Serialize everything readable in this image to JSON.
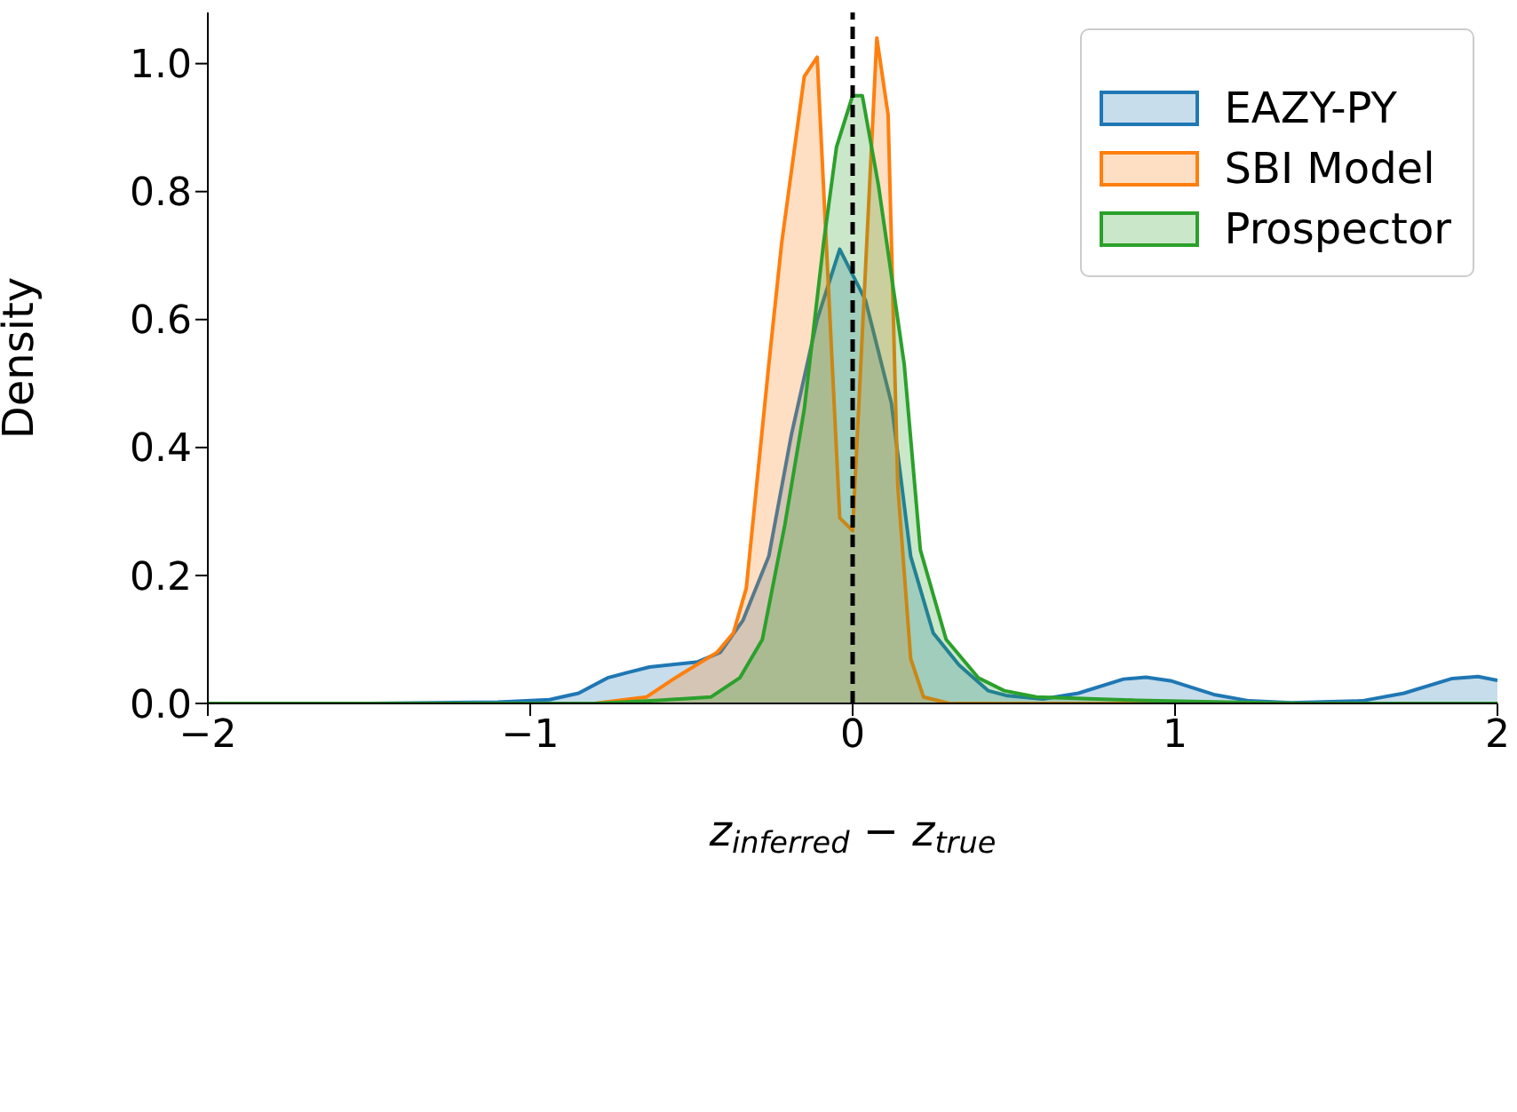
{
  "chart_data": {
    "type": "area",
    "xlabel": "z$_{inferred}$ − z$_{true}$",
    "ylabel": "Density",
    "xlim": [
      -2,
      2
    ],
    "ylim": [
      0,
      1.08
    ],
    "xticks": [
      {
        "value": -2,
        "label": "−2"
      },
      {
        "value": -1,
        "label": "−1"
      },
      0,
      1,
      2
    ],
    "yticks": [
      {
        "value": 0,
        "label": "0.0"
      },
      {
        "value": 0.2,
        "label": "0.2"
      },
      {
        "value": 0.4,
        "label": "0.4"
      },
      {
        "value": 0.6,
        "label": "0.6"
      },
      {
        "value": 0.8,
        "label": "0.8"
      },
      {
        "value": 1,
        "label": "1.0"
      }
    ],
    "legend": "top right",
    "ref_lines": [
      {
        "axis": "x",
        "value": 0,
        "color": "#000000",
        "line_style": "dashed"
      }
    ],
    "series": [
      {
        "name": "EAZY-PY",
        "color": "#1f77b4",
        "x": [
          -2,
          -1.5,
          -1.1,
          -0.94,
          -0.85,
          -0.76,
          -0.7,
          -0.63,
          -0.48,
          -0.41,
          -0.34,
          -0.26,
          -0.19,
          -0.11,
          -0.04,
          0.04,
          0.12,
          0.18,
          0.25,
          0.33,
          0.42,
          0.48,
          0.59,
          0.7,
          0.84,
          0.91,
          0.99,
          1.12,
          1.23,
          1.36,
          1.58,
          1.71,
          1.86,
          1.94,
          2
        ],
        "values": [
          0,
          0,
          0.002,
          0.006,
          0.016,
          0.04,
          0.048,
          0.057,
          0.065,
          0.08,
          0.13,
          0.23,
          0.42,
          0.6,
          0.71,
          0.63,
          0.47,
          0.23,
          0.11,
          0.06,
          0.02,
          0.012,
          0.007,
          0.016,
          0.038,
          0.041,
          0.035,
          0.014,
          0.004,
          0.001,
          0.004,
          0.016,
          0.039,
          0.042,
          0.036
        ]
      },
      {
        "name": "SBI Model",
        "color": "#ff7f0e",
        "x": [
          -2,
          -0.8,
          -0.64,
          -0.55,
          -0.42,
          -0.37,
          -0.33,
          -0.26,
          -0.22,
          -0.15,
          -0.11,
          -0.04,
          0,
          0.075,
          0.11,
          0.14,
          0.18,
          0.22,
          0.3,
          2
        ],
        "values": [
          0,
          0,
          0.01,
          0.04,
          0.08,
          0.11,
          0.18,
          0.53,
          0.72,
          0.98,
          1.01,
          0.29,
          0.27,
          1.04,
          0.92,
          0.34,
          0.07,
          0.01,
          0,
          0
        ]
      },
      {
        "name": "Prospector",
        "color": "#2ca02c",
        "x": [
          -2,
          -0.8,
          -0.6,
          -0.44,
          -0.35,
          -0.28,
          -0.21,
          -0.15,
          -0.09,
          -0.05,
          0,
          0.03,
          0.08,
          0.16,
          0.21,
          0.29,
          0.39,
          0.47,
          0.57,
          0.88,
          1.16,
          1.4,
          2
        ],
        "values": [
          0,
          0,
          0.005,
          0.01,
          0.04,
          0.1,
          0.28,
          0.46,
          0.72,
          0.87,
          0.95,
          0.95,
          0.81,
          0.53,
          0.24,
          0.1,
          0.04,
          0.02,
          0.01,
          0.005,
          0.002,
          0,
          0
        ]
      }
    ]
  }
}
